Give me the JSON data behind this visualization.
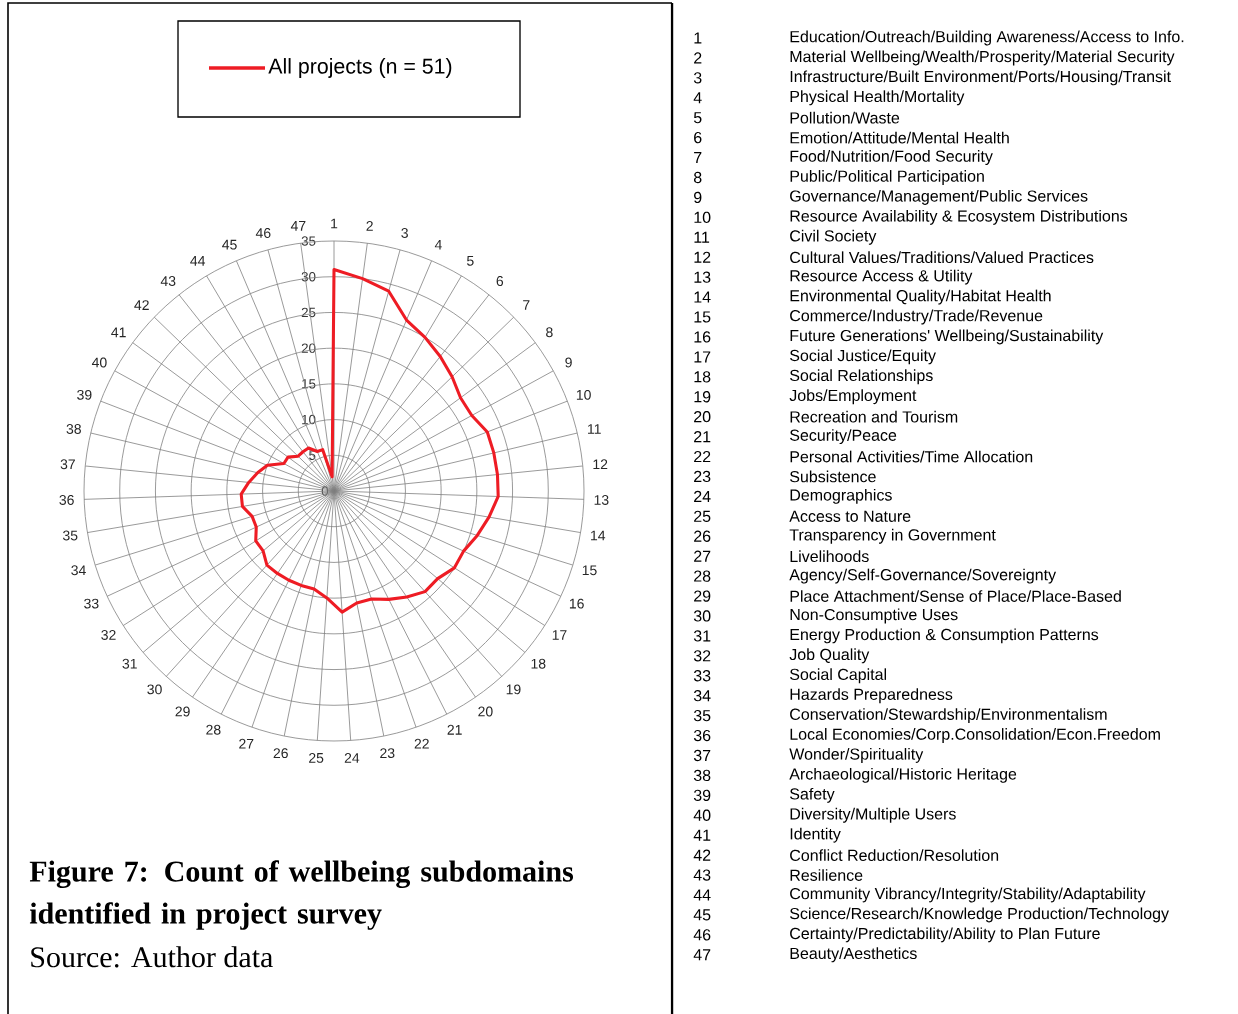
{
  "chart_data": {
    "type": "radar",
    "title": "Figure 7:  Count of wellbeing subdomains identified in project survey",
    "categories": [
      "1",
      "2",
      "3",
      "4",
      "5",
      "6",
      "7",
      "8",
      "9",
      "10",
      "11",
      "12",
      "13",
      "14",
      "15",
      "16",
      "17",
      "18",
      "19",
      "20",
      "21",
      "22",
      "23",
      "24",
      "25",
      "26",
      "27",
      "28",
      "29",
      "30",
      "31",
      "32",
      "33",
      "34",
      "35",
      "36",
      "37",
      "38",
      "39",
      "40",
      "41",
      "42",
      "43",
      "44",
      "45",
      "46",
      "47"
    ],
    "series": [
      {
        "name": "All projects (n = 51)",
        "color": "#ee1c24",
        "values": [
          31,
          30,
          29,
          26,
          25,
          24,
          23,
          22,
          22,
          23,
          23,
          23,
          23,
          22,
          21,
          20,
          20,
          19,
          19,
          18,
          17,
          16,
          16,
          17,
          15,
          14,
          14,
          14,
          14,
          14,
          13,
          13,
          12,
          12,
          13,
          13,
          12,
          11,
          10,
          8,
          8,
          7,
          7,
          7,
          6,
          6,
          2
        ]
      }
    ],
    "ylim": [
      0,
      35
    ],
    "yticks": [
      0,
      5,
      10,
      15,
      20,
      25,
      30,
      35
    ],
    "grid": true,
    "legend": "top",
    "annotations": [
      "Source: Author data",
      "1",
      "Education/Outreach/Building Awareness/Access to Info.",
      "2",
      "Material Wellbeing/Wealth/Prosperity/Material Security",
      "3",
      "Infrastructure/Built Environment/Ports/Housing/Transit",
      "4",
      "Physical Health/Mortality",
      "5",
      "Pollution/Waste",
      "6",
      "Emotion/Attitude/Mental Health",
      "7",
      "Food/Nutrition/Food Security",
      "8",
      "Public/Political Participation",
      "9",
      "Governance/Management/Public Services",
      "10",
      "Resource Availability & Ecosystem Distributions",
      "11",
      "Civil Society",
      "12",
      "Cultural Values/Traditions/Valued Practices",
      "13",
      "Resource Access & Utility",
      "14",
      "Environmental Quality/Habitat Health",
      "15",
      "Commerce/Industry/Trade/Revenue",
      "16",
      "Future Generations' Wellbeing/Sustainability",
      "17",
      "Social Justice/Equity",
      "18",
      "Social Relationships",
      "19",
      "Jobs/Employment",
      "20",
      "Recreation and Tourism",
      "21",
      "Security/Peace",
      "22",
      "Personal Activities/Time Allocation",
      "23",
      "Subsistence",
      "24",
      "Demographics",
      "25",
      "Access to Nature",
      "26",
      "Transparency in Government",
      "27",
      "Livelihoods",
      "28",
      "Agency/Self-Governance/Sovereignty",
      "29",
      "Place Attachment/Sense of Place/Place-Based",
      "30",
      "Non-Consumptive Uses",
      "31",
      "Energy Production & Consumption Patterns",
      "32",
      "Job Quality",
      "33",
      "Social Capital",
      "34",
      "Hazards Preparedness",
      "35",
      "Conservation/Stewardship/Environmentalism",
      "36",
      "Local Economies/Corp.Consolidation/Econ.Freedom",
      "37",
      "Wonder/Spirituality",
      "38",
      "Archaeological/Historic Heritage",
      "39",
      "Safety",
      "40",
      "Diversity/Multiple Users",
      "41",
      "Identity",
      "42",
      "Conflict Reduction/Resolution",
      "43",
      "Resilience",
      "44",
      "Community Vibrancy/Integrity/Stability/Adaptability",
      "45",
      "Science/Research/Knowledge Production/Technology",
      "46",
      "Certainty/Predictability/Ability to Plan Future",
      "47",
      "Beauty/Aesthetics"
    ]
  }
}
